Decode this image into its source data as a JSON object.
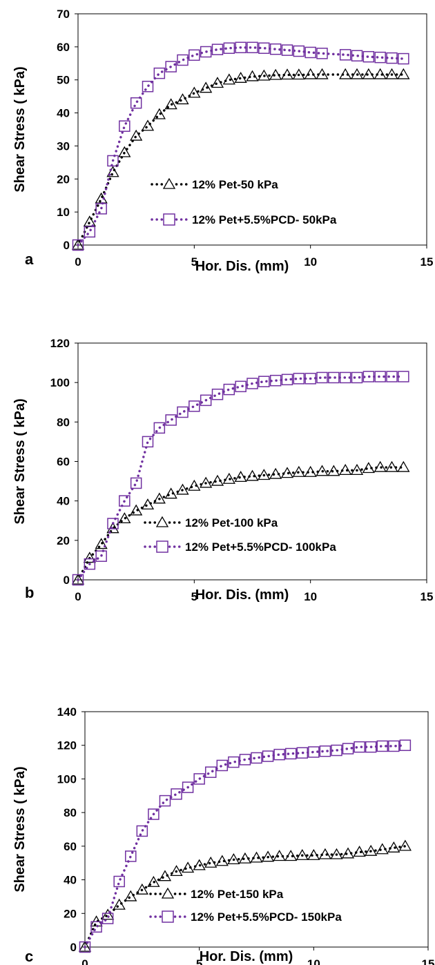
{
  "chart_data": [
    {
      "type": "scatter",
      "panel_label": "a",
      "xlabel": "Hor. Dis. (mm)",
      "ylabel": "Shear Stress ( kPa)",
      "xlim": [
        0,
        15
      ],
      "ylim": [
        0,
        70
      ],
      "xticks": [
        "0",
        "5",
        "10",
        "15"
      ],
      "yticks": [
        "0",
        "10",
        "20",
        "30",
        "40",
        "50",
        "60",
        "70"
      ],
      "grid": false,
      "legend_position": "center-right",
      "series": [
        {
          "name": "12% Pet-50 kPa",
          "marker": "triangle",
          "color": "#000000",
          "x": [
            0,
            0.5,
            1,
            1.5,
            2,
            2.5,
            3,
            3.5,
            4,
            4.5,
            5,
            5.5,
            6,
            6.5,
            7,
            7.5,
            8,
            8.5,
            9,
            9.5,
            10,
            10.5,
            11.5,
            12,
            12.5,
            13,
            13.5,
            14
          ],
          "y": [
            0,
            7,
            14,
            22,
            28,
            33,
            36,
            39.5,
            42.5,
            44,
            46,
            47.5,
            49,
            50,
            50.5,
            51,
            51.2,
            51.4,
            51.5,
            51.5,
            51.6,
            51.6,
            51.6,
            51.6,
            51.6,
            51.6,
            51.6,
            51.6
          ]
        },
        {
          "name": "12% Pet+5.5%PCD- 50kPa",
          "marker": "square",
          "color": "#7030a0",
          "x": [
            0,
            0.5,
            1,
            1.5,
            2,
            2.5,
            3,
            3.5,
            4,
            4.5,
            5,
            5.5,
            6,
            6.5,
            7,
            7.5,
            8,
            8.5,
            9,
            9.5,
            10,
            10.5,
            11.5,
            12,
            12.5,
            13,
            13.5,
            14
          ],
          "y": [
            0,
            4,
            11,
            25.5,
            36,
            43,
            48,
            52,
            54,
            56,
            57.5,
            58.5,
            59.2,
            59.6,
            59.8,
            59.8,
            59.6,
            59.3,
            59,
            58.7,
            58.3,
            58,
            57.6,
            57.3,
            57,
            56.8,
            56.6,
            56.4
          ]
        }
      ]
    },
    {
      "type": "scatter",
      "panel_label": "b",
      "xlabel": "Hor. Dis. (mm)",
      "ylabel": "Shear Stress ( kPa)",
      "xlim": [
        0,
        15
      ],
      "ylim": [
        0,
        120
      ],
      "xticks": [
        "0",
        "5",
        "10",
        "15"
      ],
      "yticks": [
        "0",
        "20",
        "40",
        "60",
        "80",
        "100",
        "120"
      ],
      "grid": false,
      "legend_position": "lower-right",
      "series": [
        {
          "name": "12% Pet-100 kPa",
          "marker": "triangle",
          "color": "#000000",
          "x": [
            0,
            0.5,
            1,
            1.5,
            2,
            2.5,
            3,
            3.5,
            4,
            4.5,
            5,
            5.5,
            6,
            6.5,
            7,
            7.5,
            8,
            8.5,
            9,
            9.5,
            10,
            10.5,
            11,
            11.5,
            12,
            12.5,
            13,
            13.5,
            14
          ],
          "y": [
            0,
            11,
            18,
            26,
            31,
            35,
            38,
            41,
            43.5,
            45.5,
            47.5,
            49,
            50,
            51,
            52,
            52.5,
            53,
            53.5,
            54,
            54.5,
            54.5,
            55,
            55,
            55.5,
            55.5,
            56.5,
            57,
            57,
            57
          ]
        },
        {
          "name": "12% Pet+5.5%PCD- 100kPa",
          "marker": "square",
          "color": "#7030a0",
          "x": [
            0,
            0.5,
            1,
            1.5,
            2,
            2.5,
            3,
            3.5,
            4,
            4.5,
            5,
            5.5,
            6,
            6.5,
            7,
            7.5,
            8,
            8.5,
            9,
            9.5,
            10,
            10.5,
            11,
            11.5,
            12,
            12.5,
            13,
            13.5,
            14
          ],
          "y": [
            0,
            8,
            12,
            28.5,
            40,
            49,
            70,
            77,
            81,
            85,
            88,
            91,
            94,
            96.5,
            98,
            99.5,
            100.5,
            101,
            101.5,
            102,
            102,
            102.5,
            102.5,
            102.5,
            102.5,
            103,
            103,
            103,
            103
          ]
        }
      ]
    },
    {
      "type": "scatter",
      "panel_label": "c",
      "xlabel": "Hor. Dis. (mm)",
      "ylabel": "Shear Stress ( kPa)",
      "xlim": [
        0,
        15
      ],
      "ylim": [
        0,
        140
      ],
      "xticks": [
        "0",
        "5",
        "10",
        "15"
      ],
      "yticks": [
        "0",
        "20",
        "40",
        "60",
        "80",
        "100",
        "120",
        "140"
      ],
      "grid": false,
      "legend_position": "lower-right",
      "series": [
        {
          "name": "12% Pet-150 kPa",
          "marker": "triangle",
          "color": "#000000",
          "x": [
            0,
            0.5,
            1,
            1.5,
            2,
            2.5,
            3,
            3.5,
            4,
            4.5,
            5,
            5.5,
            6,
            6.5,
            7,
            7.5,
            8,
            8.5,
            9,
            9.5,
            10,
            10.5,
            11,
            11.5,
            12,
            12.5,
            13,
            13.5,
            14
          ],
          "y": [
            0,
            15,
            19,
            25,
            30,
            34,
            38.5,
            42,
            45,
            47,
            48.5,
            50,
            51,
            52,
            52.5,
            53,
            53.5,
            54,
            54,
            54.5,
            54.5,
            55,
            55,
            55.5,
            56.5,
            57,
            58,
            59,
            60
          ]
        },
        {
          "name": "12% Pet+5.5%PCD- 150kPa",
          "marker": "square",
          "color": "#7030a0",
          "x": [
            0,
            0.5,
            1,
            1.5,
            2,
            2.5,
            3,
            3.5,
            4,
            4.5,
            5,
            5.5,
            6,
            6.5,
            7,
            7.5,
            8,
            8.5,
            9,
            9.5,
            10,
            10.5,
            11,
            11.5,
            12,
            12.5,
            13,
            13.5,
            14
          ],
          "y": [
            0,
            12,
            17,
            39,
            54,
            69,
            79,
            87,
            91,
            95,
            100,
            104,
            108,
            110,
            111.5,
            112.5,
            113.5,
            114.5,
            115,
            115.5,
            116,
            116.5,
            117,
            118,
            119,
            119,
            119.5,
            119.5,
            120
          ]
        }
      ]
    }
  ]
}
